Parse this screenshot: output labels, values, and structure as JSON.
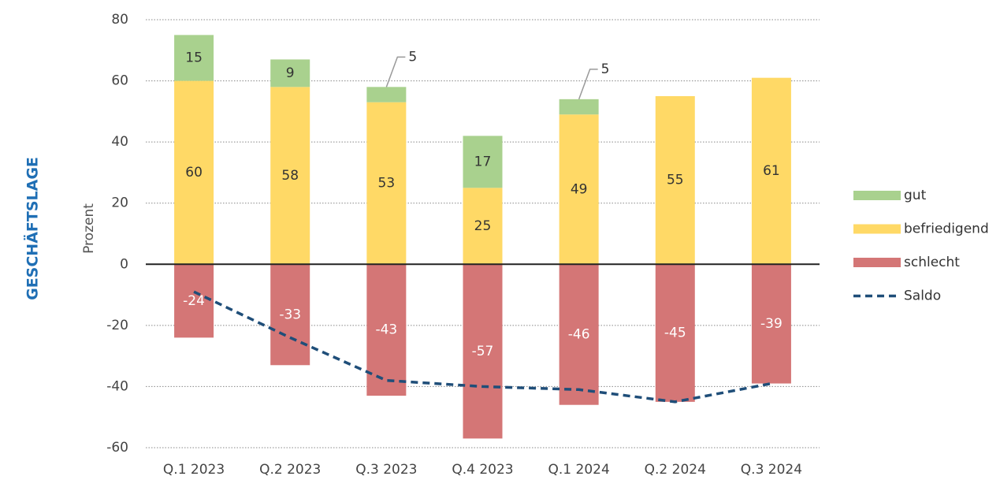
{
  "chart_data": {
    "type": "bar",
    "title": "GESCHÄFTSLAGE",
    "ylabel": "Prozent",
    "categories": [
      "Q.1 2023",
      "Q.2 2023",
      "Q.3 2023",
      "Q.4 2023",
      "Q.1 2024",
      "Q.2 2024",
      "Q.3 2024"
    ],
    "series": [
      {
        "name": "gut",
        "color": "#a9d18e",
        "values": [
          15,
          9,
          5,
          17,
          5,
          null,
          null
        ]
      },
      {
        "name": "befriedigend",
        "color": "#ffd966",
        "values": [
          60,
          58,
          53,
          25,
          49,
          55,
          61
        ]
      },
      {
        "name": "schlecht",
        "color": "#d47676",
        "values": [
          -24,
          -33,
          -43,
          -57,
          -46,
          -45,
          -39
        ]
      },
      {
        "name": "Saldo",
        "type": "line",
        "color": "#1f4e79",
        "values": [
          -9,
          -24,
          -38,
          -40,
          -41,
          -45,
          -39
        ]
      }
    ],
    "ylim": [
      -60,
      80
    ],
    "yticks": [
      -60,
      -40,
      -20,
      0,
      20,
      40,
      60,
      80
    ],
    "grid": true,
    "legend": "right"
  }
}
